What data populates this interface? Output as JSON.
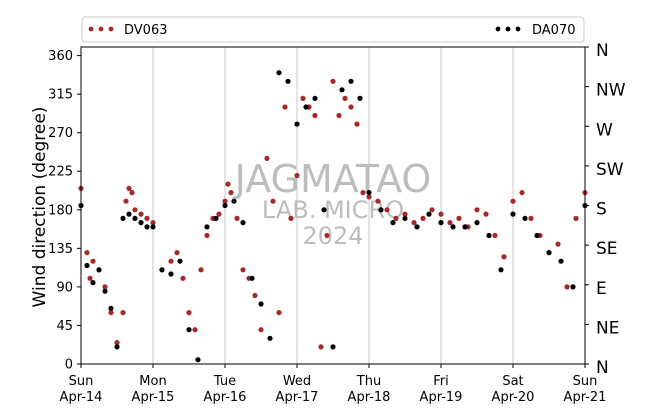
{
  "colors": {
    "dv063": "#a52a2a",
    "da070": "#000000",
    "grid": "#c8c8c8",
    "watermark": "#bdbdbd"
  },
  "watermark": {
    "line1": "JAGMATAO",
    "line2": "LAB. MICRO",
    "line3": "2024"
  },
  "chart_data": {
    "type": "scatter",
    "title": "",
    "ylabel": "Wind direction (degree)",
    "xlabel": "",
    "ylim": [
      0,
      370
    ],
    "grid": "vertical lines at day boundaries",
    "legend_position": "above plot, full width",
    "x_ticks": [
      {
        "day": "Sun",
        "date": "Apr-14"
      },
      {
        "day": "Mon",
        "date": "Apr-15"
      },
      {
        "day": "Tue",
        "date": "Apr-16"
      },
      {
        "day": "Wed",
        "date": "Apr-17"
      },
      {
        "day": "Thu",
        "date": "Apr-18"
      },
      {
        "day": "Fri",
        "date": "Apr-19"
      },
      {
        "day": "Sat",
        "date": "Apr-20"
      },
      {
        "day": "Sun",
        "date": "Apr-21"
      }
    ],
    "y_ticks": [
      "0",
      "45",
      "90",
      "135",
      "180",
      "225",
      "270",
      "315",
      "360"
    ],
    "compass_labels": [
      "N",
      "NE",
      "E",
      "SE",
      "S",
      "SW",
      "W",
      "NW",
      "N"
    ],
    "series": [
      {
        "name": "DV063",
        "color": "#a52a2a",
        "x": [
          "2024-04-14 00:00",
          "2024-04-14 02:00",
          "2024-04-14 03:00",
          "2024-04-14 04:00",
          "2024-04-14 06:00",
          "2024-04-14 08:00",
          "2024-04-14 10:00",
          "2024-04-14 12:00",
          "2024-04-14 14:00",
          "2024-04-14 15:00",
          "2024-04-14 16:00",
          "2024-04-14 17:00",
          "2024-04-14 18:00",
          "2024-04-14 20:00",
          "2024-04-14 22:00",
          "2024-04-15 00:00",
          "2024-04-15 03:00",
          "2024-04-15 06:00",
          "2024-04-15 08:00",
          "2024-04-15 10:00",
          "2024-04-15 12:00",
          "2024-04-15 14:00",
          "2024-04-15 16:00",
          "2024-04-15 18:00",
          "2024-04-15 20:00",
          "2024-04-15 22:00",
          "2024-04-16 00:00",
          "2024-04-16 01:00",
          "2024-04-16 02:00",
          "2024-04-16 04:00",
          "2024-04-16 06:00",
          "2024-04-16 08:00",
          "2024-04-16 10:00",
          "2024-04-16 12:00",
          "2024-04-16 14:00",
          "2024-04-16 16:00",
          "2024-04-16 18:00",
          "2024-04-16 20:00",
          "2024-04-16 22:00",
          "2024-04-17 00:00",
          "2024-04-17 02:00",
          "2024-04-17 04:00",
          "2024-04-17 06:00",
          "2024-04-17 08:00",
          "2024-04-17 10:00",
          "2024-04-17 12:00",
          "2024-04-17 14:00",
          "2024-04-17 16:00",
          "2024-04-17 18:00",
          "2024-04-17 20:00",
          "2024-04-17 22:00",
          "2024-04-18 00:00",
          "2024-04-18 03:00",
          "2024-04-18 06:00",
          "2024-04-18 09:00",
          "2024-04-18 12:00",
          "2024-04-18 15:00",
          "2024-04-18 18:00",
          "2024-04-18 21:00",
          "2024-04-19 00:00",
          "2024-04-19 03:00",
          "2024-04-19 06:00",
          "2024-04-19 09:00",
          "2024-04-19 12:00",
          "2024-04-19 15:00",
          "2024-04-19 18:00",
          "2024-04-19 21:00",
          "2024-04-20 00:00",
          "2024-04-20 03:00",
          "2024-04-20 06:00",
          "2024-04-20 09:00",
          "2024-04-20 12:00",
          "2024-04-20 15:00",
          "2024-04-20 18:00",
          "2024-04-20 21:00",
          "2024-04-21 00:00"
        ],
        "y": [
          205,
          130,
          100,
          120,
          110,
          90,
          60,
          25,
          60,
          190,
          205,
          200,
          180,
          175,
          170,
          165,
          110,
          120,
          130,
          100,
          60,
          40,
          110,
          150,
          170,
          175,
          190,
          210,
          200,
          170,
          110,
          100,
          80,
          40,
          240,
          190,
          60,
          300,
          170,
          220,
          310,
          300,
          290,
          20,
          150,
          330,
          290,
          310,
          300,
          280,
          200,
          195,
          190,
          180,
          170,
          175,
          165,
          170,
          180,
          175,
          165,
          170,
          160,
          180,
          175,
          150,
          125,
          190,
          200,
          170,
          150,
          130,
          140,
          90,
          170,
          200
        ]
      },
      {
        "name": "DA070",
        "color": "#000000",
        "x": [
          "2024-04-14 00:00",
          "2024-04-14 02:00",
          "2024-04-14 04:00",
          "2024-04-14 06:00",
          "2024-04-14 08:00",
          "2024-04-14 10:00",
          "2024-04-14 12:00",
          "2024-04-14 14:00",
          "2024-04-14 16:00",
          "2024-04-14 18:00",
          "2024-04-14 20:00",
          "2024-04-14 22:00",
          "2024-04-15 00:00",
          "2024-04-15 03:00",
          "2024-04-15 06:00",
          "2024-04-15 09:00",
          "2024-04-15 12:00",
          "2024-04-15 15:00",
          "2024-04-15 18:00",
          "2024-04-15 21:00",
          "2024-04-16 00:00",
          "2024-04-16 03:00",
          "2024-04-16 06:00",
          "2024-04-16 09:00",
          "2024-04-16 12:00",
          "2024-04-16 15:00",
          "2024-04-16 18:00",
          "2024-04-16 21:00",
          "2024-04-17 00:00",
          "2024-04-17 03:00",
          "2024-04-17 06:00",
          "2024-04-17 09:00",
          "2024-04-17 12:00",
          "2024-04-17 15:00",
          "2024-04-17 18:00",
          "2024-04-17 21:00",
          "2024-04-18 00:00",
          "2024-04-18 04:00",
          "2024-04-18 08:00",
          "2024-04-18 12:00",
          "2024-04-18 16:00",
          "2024-04-18 20:00",
          "2024-04-19 00:00",
          "2024-04-19 04:00",
          "2024-04-19 08:00",
          "2024-04-19 12:00",
          "2024-04-19 16:00",
          "2024-04-19 20:00",
          "2024-04-20 00:00",
          "2024-04-20 04:00",
          "2024-04-20 08:00",
          "2024-04-20 12:00",
          "2024-04-20 16:00",
          "2024-04-20 20:00",
          "2024-04-21 00:00"
        ],
        "y": [
          185,
          115,
          95,
          110,
          85,
          65,
          20,
          170,
          175,
          170,
          165,
          160,
          160,
          110,
          105,
          120,
          40,
          5,
          160,
          170,
          185,
          190,
          165,
          100,
          70,
          30,
          340,
          330,
          280,
          300,
          310,
          180,
          20,
          320,
          330,
          310,
          200,
          180,
          165,
          170,
          160,
          175,
          165,
          160,
          160,
          165,
          150,
          110,
          175,
          170,
          150,
          130,
          120,
          90,
          185
        ]
      }
    ]
  }
}
